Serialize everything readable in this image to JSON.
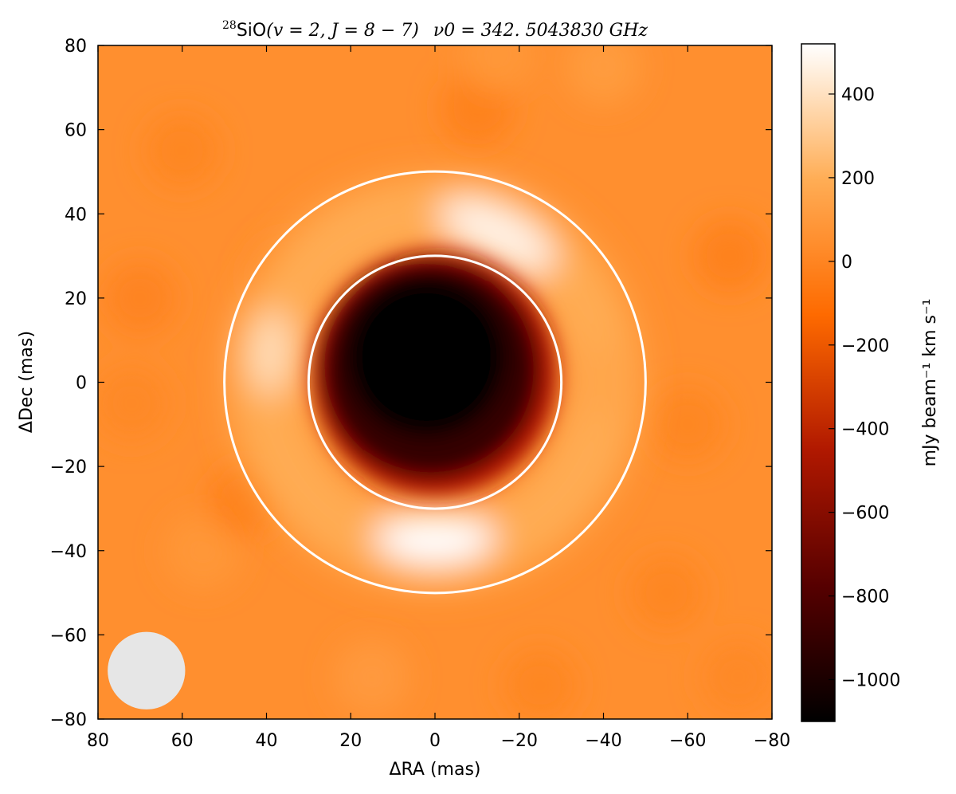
{
  "chart_data": {
    "type": "heatmap",
    "title": {
      "isotope": "28",
      "molecule": "SiO",
      "transition": "(v = 2,  J = 8 − 7)",
      "frequency": "ν0 = 342. 5043830 GHz",
      "full": "28SiO(v = 2, J = 8 − 7)   ν0 = 342. 5043830 GHz"
    },
    "xlabel": "ΔRA (mas)",
    "ylabel": "ΔDec (mas)",
    "xlim": [
      80,
      -80
    ],
    "ylim": [
      -80,
      80
    ],
    "x_ticks": [
      80,
      60,
      40,
      20,
      0,
      -20,
      -40,
      -60,
      -80
    ],
    "x_tick_labels": [
      "80",
      "60",
      "40",
      "20",
      "0",
      "−20",
      "−40",
      "−60",
      "−80"
    ],
    "y_ticks": [
      80,
      60,
      40,
      20,
      0,
      -20,
      -40,
      -60,
      -80
    ],
    "y_tick_labels": [
      "80",
      "60",
      "40",
      "20",
      "0",
      "−20",
      "−40",
      "−60",
      "−80"
    ],
    "colorbar": {
      "label": "mJy beam⁻¹ km s⁻¹",
      "range": [
        -1100,
        520
      ],
      "ticks": [
        400,
        200,
        0,
        -200,
        -400,
        -600,
        -800,
        -1000
      ],
      "tick_labels": [
        "400",
        "200",
        "0",
        "−200",
        "−400",
        "−600",
        "−800",
        "−1000"
      ],
      "colormap": "gist_heat",
      "colormap_stops": [
        "#000000",
        "#560000",
        "#b01800",
        "#fe6a00",
        "#ffad55",
        "#ffffff"
      ]
    },
    "field": {
      "background": 50,
      "center_absorption": {
        "ra": 0,
        "dec": 2,
        "radius": 29,
        "peak": -1090
      },
      "ring_emission": [
        {
          "ra": 0,
          "dec": -37,
          "value": 520,
          "note": "southern lobe"
        },
        {
          "ra": -15,
          "dec": 35,
          "value": 470,
          "note": "northern lobe"
        },
        {
          "ra": 39,
          "dec": 7,
          "value": 380,
          "note": "eastern lobe"
        },
        {
          "ra": -40,
          "dec": 0,
          "value": 160,
          "note": "western rim"
        }
      ]
    },
    "circles": [
      {
        "ra": 0,
        "dec": 0,
        "radius": 30,
        "color": "#ffffff"
      },
      {
        "ra": 0,
        "dec": 0,
        "radius": 50,
        "color": "#ffffff"
      }
    ],
    "beam": {
      "ra": 68.5,
      "dec": -68.5,
      "radius": 9.2,
      "color": "#e6e6e6"
    }
  }
}
